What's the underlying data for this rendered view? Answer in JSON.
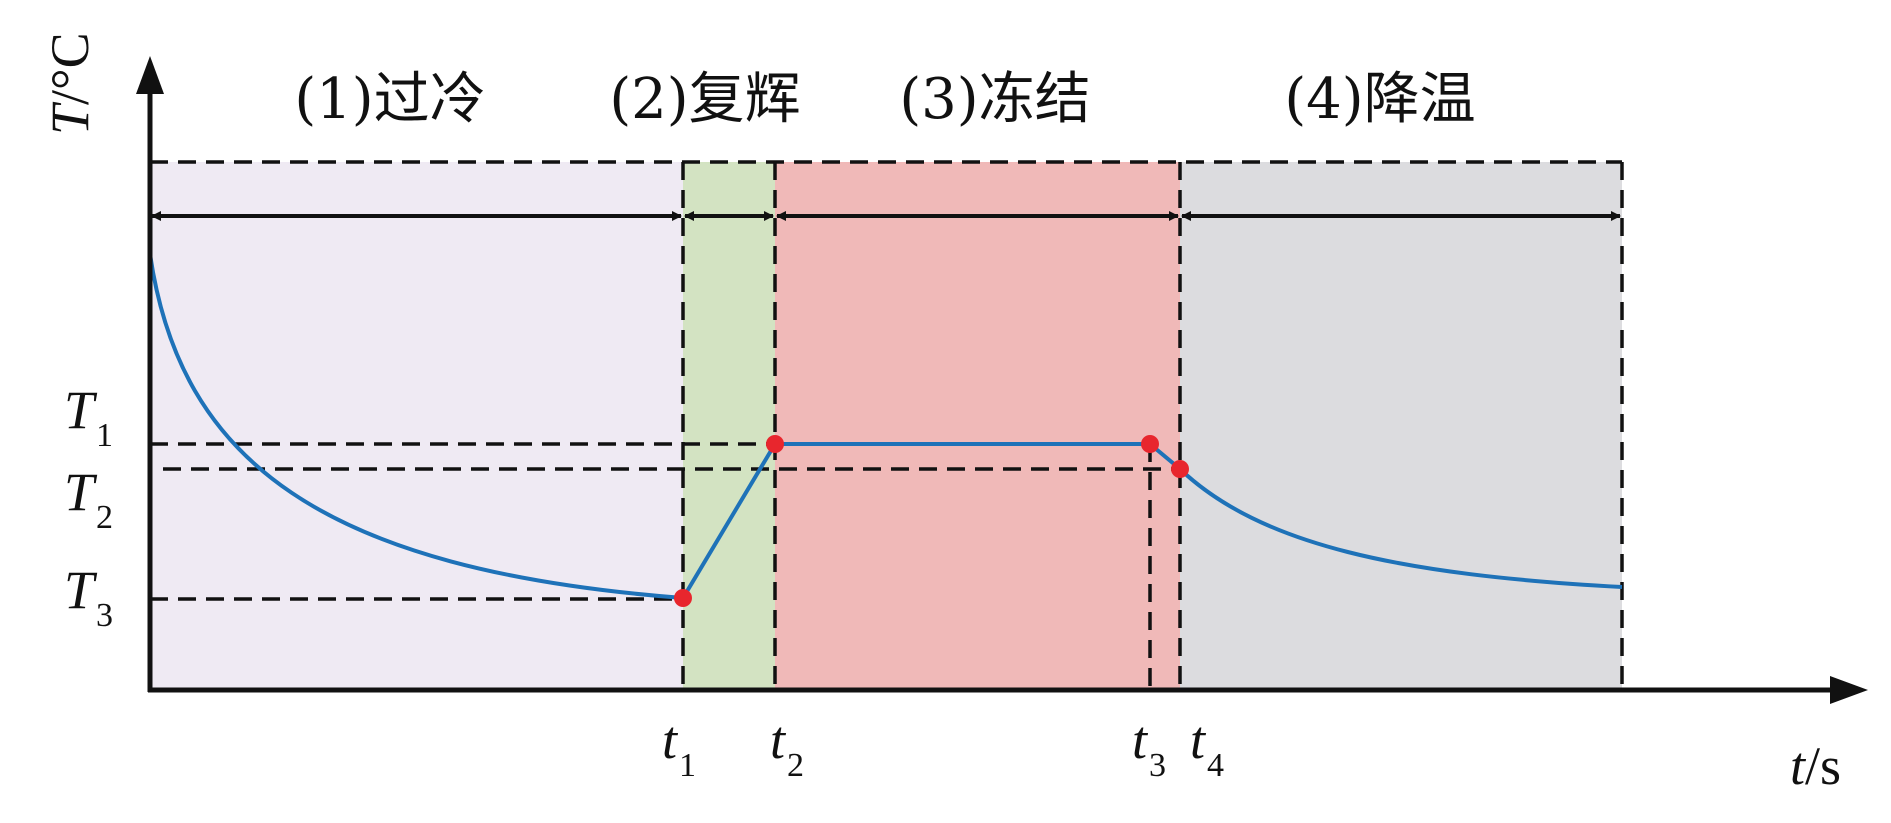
{
  "diagram": {
    "y_axis": {
      "symbol": "T",
      "unit": "/°C"
    },
    "x_axis": {
      "symbol": "t",
      "unit": "/s"
    },
    "phases": [
      {
        "label": "(1)过冷",
        "color": "#efeaf3"
      },
      {
        "label": "(2)复辉",
        "color": "#d3e3c2"
      },
      {
        "label": "(3)冻结",
        "color": "#f0b9b8"
      },
      {
        "label": "(4)降温",
        "color": "#dcdcdf"
      }
    ],
    "temperature_labels": [
      {
        "symbol": "T",
        "sub": "1"
      },
      {
        "symbol": "T",
        "sub": "2"
      },
      {
        "symbol": "T",
        "sub": "3"
      }
    ],
    "time_labels": [
      {
        "symbol": "t",
        "sub": "1"
      },
      {
        "symbol": "t",
        "sub": "2"
      },
      {
        "symbol": "t",
        "sub": "3"
      },
      {
        "symbol": "t",
        "sub": "4"
      }
    ],
    "curve_color": "#1e72b8",
    "point_color": "#e8262d"
  }
}
